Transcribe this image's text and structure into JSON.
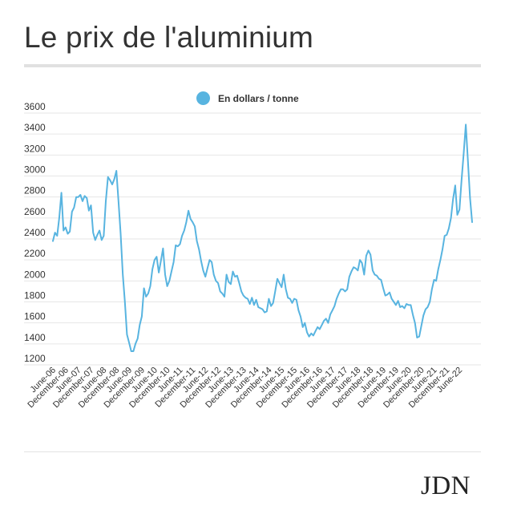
{
  "page": {
    "title": "Le prix de l'aluminium",
    "logo_text": "JDN"
  },
  "colors": {
    "series": "#58b4e0",
    "grid": "#e6e6e6",
    "text": "#333333"
  },
  "chart_data": {
    "type": "line",
    "title": "Le prix de l'aluminium",
    "legend": {
      "position": "top-center"
    },
    "grid": true,
    "ylim": [
      1200,
      3600
    ],
    "yticks": [
      1200,
      1400,
      1600,
      1800,
      2000,
      2200,
      2400,
      2600,
      2800,
      3000,
      3200,
      3400,
      3600
    ],
    "xticks": [
      "June-06",
      "December-06",
      "June-07",
      "December-07",
      "June-08",
      "December-08",
      "June-09",
      "December-09",
      "June-10",
      "December-10",
      "June-11",
      "December-11",
      "June-12",
      "December-12",
      "June-13",
      "December-13",
      "June-14",
      "December-14",
      "June-15",
      "December-15",
      "June-16",
      "December-16",
      "June-17",
      "December-17",
      "June-18",
      "December-18",
      "June-19",
      "December-19",
      "June-20",
      "December-20",
      "June-21",
      "December-21",
      "June-22"
    ],
    "series": [
      {
        "name": "En dollars / tonne",
        "x_start": "June-06",
        "step_months": 1,
        "values": [
          2380,
          2460,
          2430,
          2600,
          2840,
          2480,
          2510,
          2450,
          2470,
          2660,
          2700,
          2800,
          2800,
          2820,
          2760,
          2810,
          2790,
          2670,
          2720,
          2460,
          2390,
          2440,
          2480,
          2390,
          2430,
          2760,
          2990,
          2960,
          2920,
          2970,
          3050,
          2750,
          2450,
          2060,
          1800,
          1490,
          1410,
          1330,
          1330,
          1400,
          1450,
          1580,
          1660,
          1930,
          1850,
          1880,
          1950,
          2110,
          2200,
          2230,
          2080,
          2190,
          2310,
          2060,
          1950,
          2000,
          2090,
          2180,
          2340,
          2330,
          2350,
          2430,
          2480,
          2560,
          2670,
          2590,
          2560,
          2520,
          2380,
          2300,
          2190,
          2100,
          2040,
          2120,
          2200,
          2180,
          2060,
          2000,
          1980,
          1900,
          1880,
          1850,
          2060,
          1990,
          1970,
          2090,
          2040,
          2050,
          1980,
          1900,
          1860,
          1840,
          1830,
          1780,
          1840,
          1770,
          1820,
          1750,
          1740,
          1730,
          1700,
          1710,
          1830,
          1760,
          1790,
          1900,
          2020,
          1980,
          1940,
          2060,
          1920,
          1840,
          1830,
          1790,
          1830,
          1820,
          1720,
          1660,
          1560,
          1600,
          1510,
          1470,
          1500,
          1480,
          1520,
          1560,
          1540,
          1580,
          1620,
          1640,
          1600,
          1680,
          1720,
          1760,
          1830,
          1880,
          1920,
          1920,
          1900,
          1920,
          2040,
          2090,
          2130,
          2120,
          2100,
          2200,
          2170,
          2060,
          2240,
          2290,
          2250,
          2100,
          2060,
          2050,
          2020,
          2010,
          1930,
          1860,
          1870,
          1890,
          1830,
          1800,
          1770,
          1810,
          1750,
          1760,
          1740,
          1780,
          1770,
          1770,
          1680,
          1600,
          1460,
          1470,
          1570,
          1670,
          1730,
          1750,
          1800,
          1920,
          2010,
          2000,
          2110,
          2200,
          2300,
          2430,
          2440,
          2500,
          2600,
          2780,
          2910,
          2630,
          2680,
          2960,
          3210,
          3490,
          3150,
          2790,
          2560
        ]
      }
    ]
  }
}
